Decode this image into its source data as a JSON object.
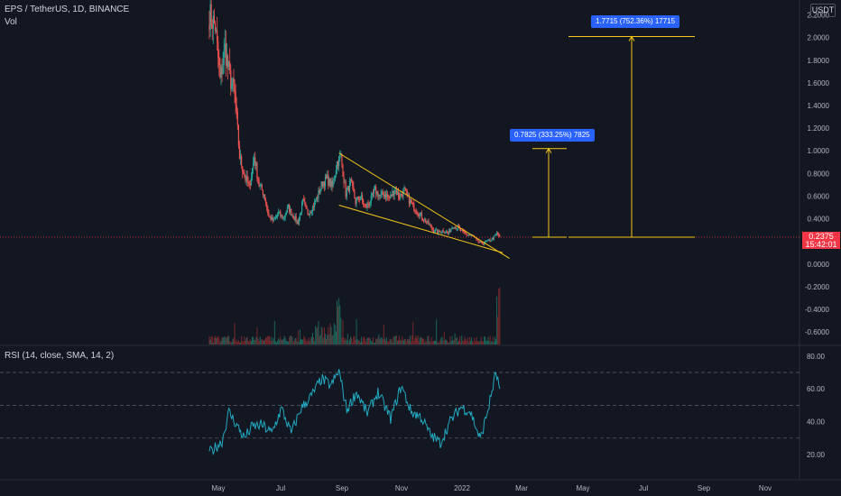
{
  "header": {
    "symbol_line": "EPS / TetherUS, 1D, BINANCE",
    "volume_label": "Vol",
    "unit_label": "USDT"
  },
  "rsi": {
    "title": "RSI (14, close, SMA, 14, 2)"
  },
  "last_price": {
    "value": "0.2375",
    "countdown": "15:42:01"
  },
  "measurements": [
    {
      "text": "0.7825 (333.25%) 7825"
    },
    {
      "text": "1.7715 (752.36%) 17715"
    }
  ],
  "colors": {
    "background": "#131722",
    "up": "#26a69a",
    "down": "#ef5350",
    "trendline": "#f5c518",
    "rsi_line": "#22a9c1",
    "label_bg": "#2962ff",
    "price_tag": "#f23645"
  },
  "chart_data": [
    {
      "type": "candlestick",
      "title": "EPS / TetherUS, 1D, BINANCE",
      "x_tick_labels": [
        "May",
        "Jul",
        "Sep",
        "Nov",
        "2022",
        "Mar",
        "May",
        "Jul",
        "Sep",
        "Nov"
      ],
      "y_tick_labels": [
        "2.2000",
        "2.0000",
        "1.8000",
        "1.6000",
        "1.4000",
        "1.2000",
        "1.0000",
        "0.8000",
        "0.6000",
        "0.4000",
        "0.0000",
        "-0.2000",
        "-0.4000",
        "-0.6000"
      ],
      "ylim": [
        -0.68,
        2.28
      ],
      "grid": false,
      "close_path": [
        [
          "2021-04-22",
          2.2
        ],
        [
          "2021-04-28",
          2.1
        ],
        [
          "2021-05-03",
          1.62
        ],
        [
          "2021-05-08",
          1.9
        ],
        [
          "2021-05-13",
          1.65
        ],
        [
          "2021-05-18",
          1.5
        ],
        [
          "2021-05-23",
          0.95
        ],
        [
          "2021-05-28",
          0.78
        ],
        [
          "2021-06-02",
          0.68
        ],
        [
          "2021-06-07",
          0.95
        ],
        [
          "2021-06-12",
          0.7
        ],
        [
          "2021-06-17",
          0.62
        ],
        [
          "2021-06-22",
          0.42
        ],
        [
          "2021-06-27",
          0.38
        ],
        [
          "2021-07-02",
          0.45
        ],
        [
          "2021-07-07",
          0.4
        ],
        [
          "2021-07-12",
          0.5
        ],
        [
          "2021-07-17",
          0.42
        ],
        [
          "2021-07-22",
          0.37
        ],
        [
          "2021-07-27",
          0.55
        ],
        [
          "2021-08-01",
          0.45
        ],
        [
          "2021-08-06",
          0.5
        ],
        [
          "2021-08-11",
          0.6
        ],
        [
          "2021-08-16",
          0.72
        ],
        [
          "2021-08-21",
          0.75
        ],
        [
          "2021-08-26",
          0.68
        ],
        [
          "2021-08-31",
          0.9
        ],
        [
          "2021-09-04",
          0.95
        ],
        [
          "2021-09-09",
          0.62
        ],
        [
          "2021-09-14",
          0.72
        ],
        [
          "2021-09-19",
          0.55
        ],
        [
          "2021-09-24",
          0.6
        ],
        [
          "2021-09-29",
          0.5
        ],
        [
          "2021-10-04",
          0.55
        ],
        [
          "2021-10-09",
          0.65
        ],
        [
          "2021-10-14",
          0.6
        ],
        [
          "2021-10-19",
          0.62
        ],
        [
          "2021-10-24",
          0.58
        ],
        [
          "2021-10-29",
          0.66
        ],
        [
          "2021-11-03",
          0.6
        ],
        [
          "2021-11-08",
          0.65
        ],
        [
          "2021-11-13",
          0.56
        ],
        [
          "2021-11-18",
          0.5
        ],
        [
          "2021-11-23",
          0.45
        ],
        [
          "2021-11-28",
          0.4
        ],
        [
          "2021-12-03",
          0.35
        ],
        [
          "2021-12-08",
          0.3
        ],
        [
          "2021-12-13",
          0.28
        ],
        [
          "2021-12-18",
          0.3
        ],
        [
          "2021-12-23",
          0.27
        ],
        [
          "2021-12-28",
          0.34
        ],
        [
          "2022-01-02",
          0.32
        ],
        [
          "2022-01-07",
          0.28
        ],
        [
          "2022-01-12",
          0.26
        ],
        [
          "2022-01-17",
          0.25
        ],
        [
          "2022-01-22",
          0.2
        ],
        [
          "2022-01-27",
          0.18
        ],
        [
          "2022-02-01",
          0.2
        ],
        [
          "2022-02-06",
          0.22
        ],
        [
          "2022-02-11",
          0.27
        ],
        [
          "2022-02-14",
          0.24
        ]
      ],
      "last_price": 0.2375,
      "measurements": [
        {
          "from": 0.2375,
          "to": 1.02,
          "change": 0.7825,
          "percent": 333.25,
          "ticks": 7825
        },
        {
          "from": 0.2375,
          "to": 2.009,
          "change": 1.7715,
          "percent": 752.36,
          "ticks": 17715
        }
      ],
      "falling_wedge": [
        {
          "from": [
            "2021-09-02",
            0.98
          ],
          "to": [
            "2022-02-24",
            0.05
          ]
        },
        {
          "from": [
            "2021-09-02",
            0.52
          ],
          "to": [
            "2022-02-17",
            0.1
          ]
        }
      ]
    },
    {
      "type": "bar",
      "title": "Vol",
      "description": "Daily volume bars, green on up days, red on down days, with spikes near early September 2021 and mid February 2022"
    },
    {
      "type": "line",
      "title": "RSI (14, close, SMA, 14, 2)",
      "y_tick_labels": [
        "80.00",
        "60.00",
        "40.00",
        "20.00"
      ],
      "ylim": [
        10,
        85
      ],
      "bands": [
        70,
        50,
        30
      ],
      "x": [
        "2021-04-22",
        "2021-05-05",
        "2021-05-12",
        "2021-05-20",
        "2021-05-28",
        "2021-06-05",
        "2021-06-15",
        "2021-06-25",
        "2021-07-05",
        "2021-07-15",
        "2021-07-25",
        "2021-08-05",
        "2021-08-15",
        "2021-08-25",
        "2021-09-02",
        "2021-09-10",
        "2021-09-20",
        "2021-10-01",
        "2021-10-12",
        "2021-10-25",
        "2021-11-05",
        "2021-11-15",
        "2021-11-25",
        "2021-12-05",
        "2021-12-15",
        "2021-12-25",
        "2022-01-05",
        "2022-01-15",
        "2022-01-25",
        "2022-02-03",
        "2022-02-10",
        "2022-02-14"
      ],
      "values": [
        21,
        28,
        46,
        38,
        30,
        37,
        38,
        33,
        48,
        33,
        48,
        56,
        66,
        62,
        71,
        47,
        58,
        45,
        58,
        42,
        62,
        46,
        43,
        32,
        27,
        40,
        49,
        46,
        29,
        50,
        70,
        60
      ]
    }
  ]
}
